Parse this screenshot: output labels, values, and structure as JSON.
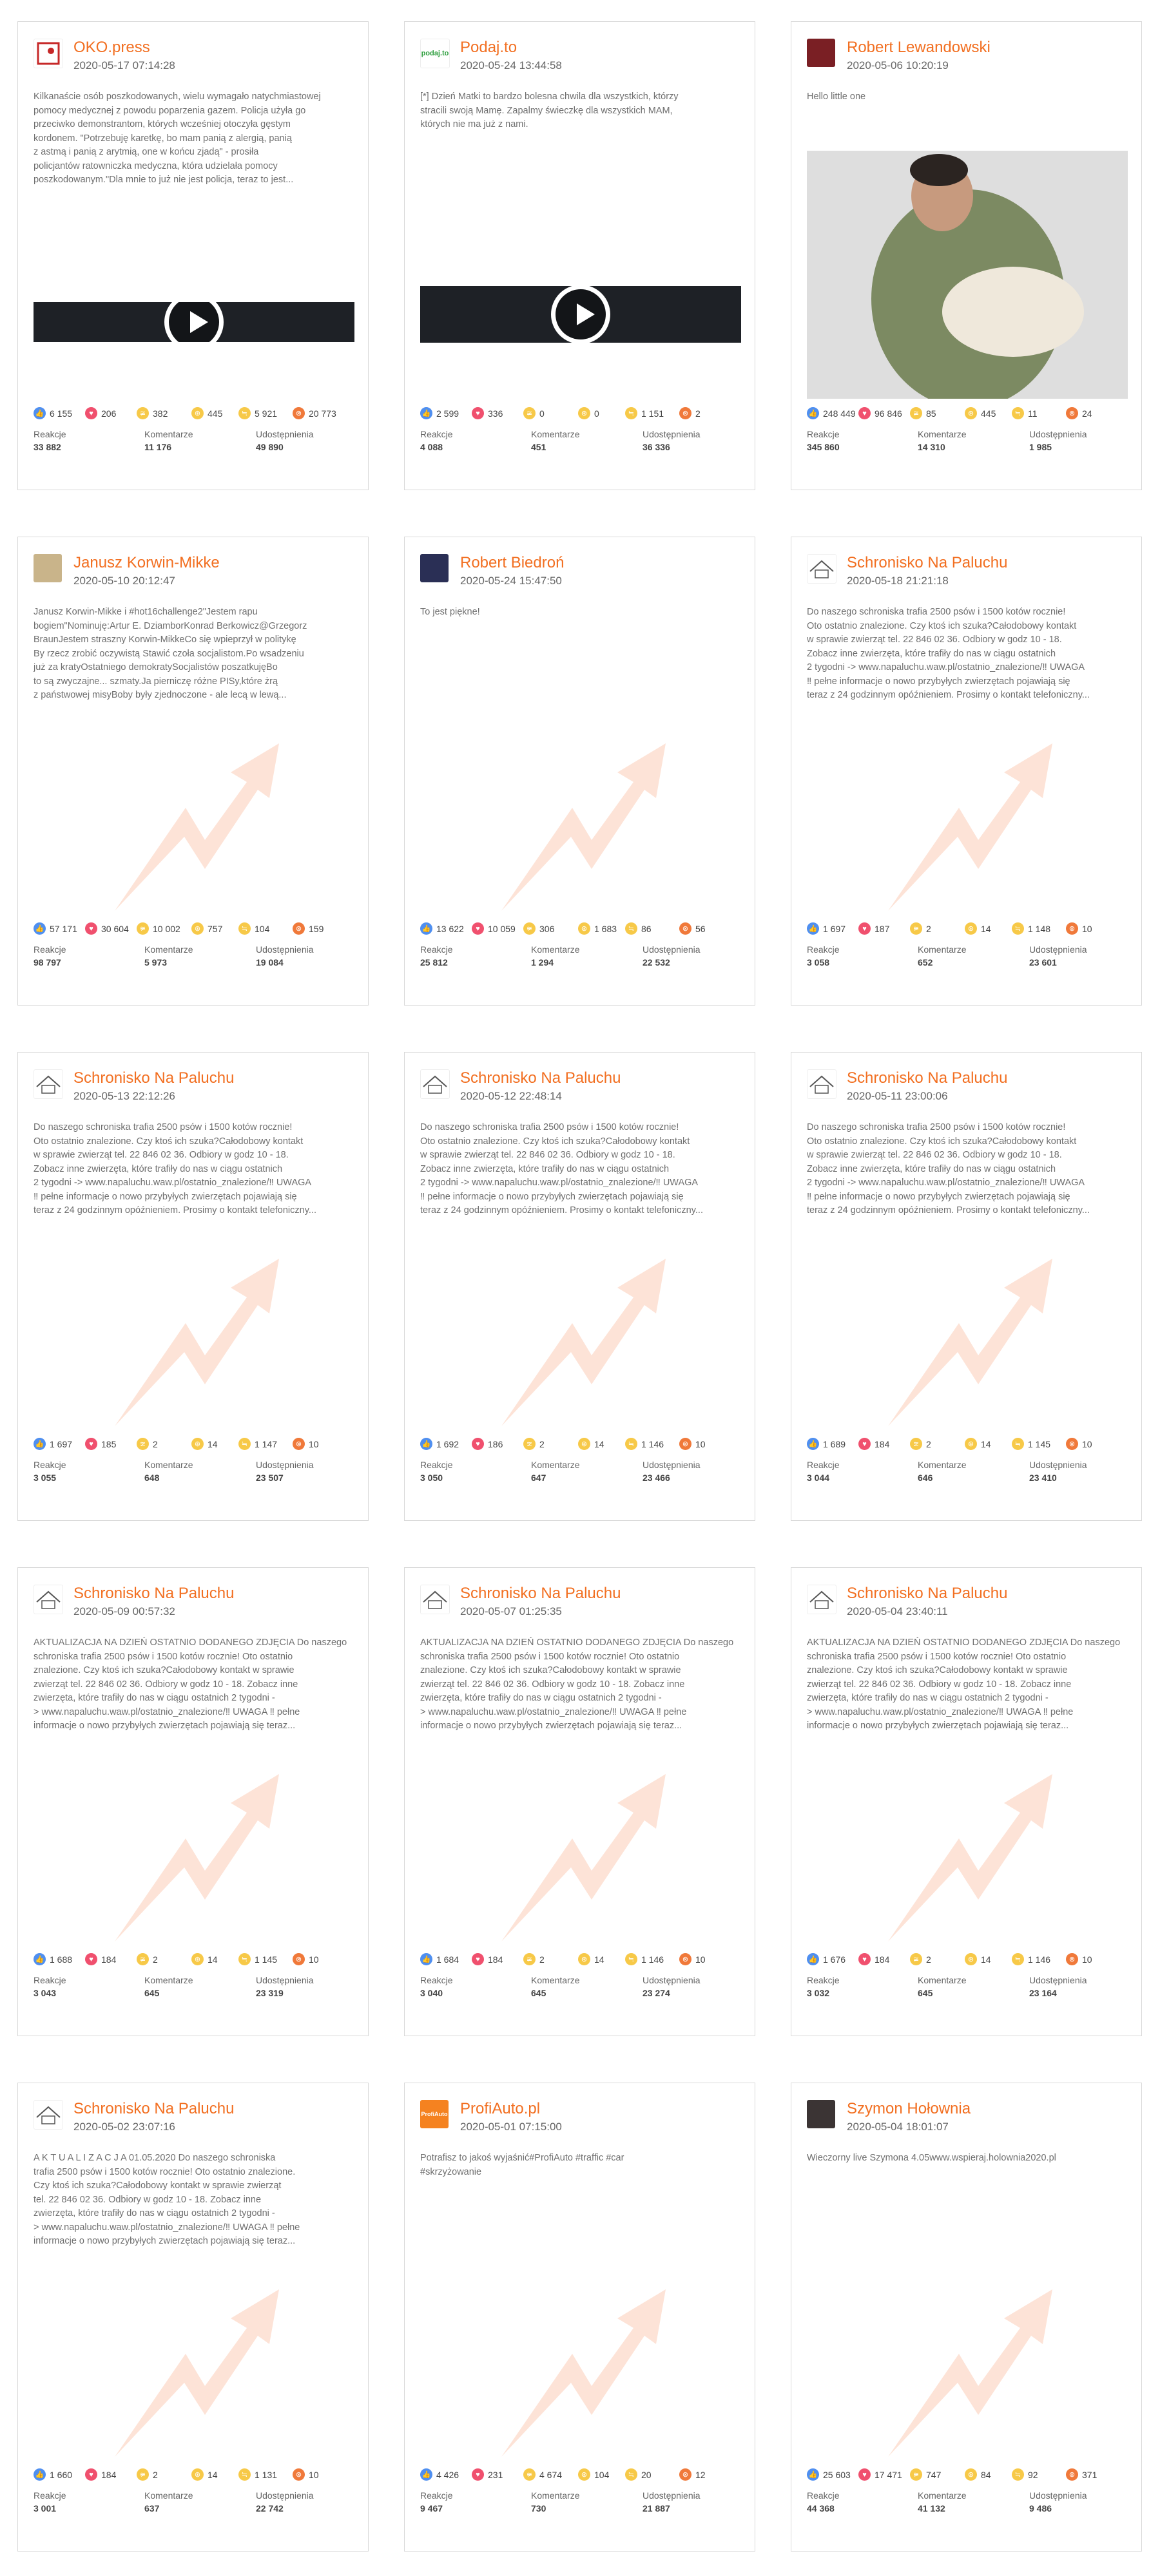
{
  "labels": {
    "reactions": "Reakcje",
    "comments": "Komentarze",
    "shares": "Udostępnienia"
  },
  "colors": {
    "author": "#f26f21",
    "like": "#4f8ff0",
    "love": "#f0506e",
    "haha": "#f7c948",
    "angry": "#f0793a",
    "watermark": "#fde3d7"
  },
  "cards": [
    {
      "author": "OKO.press",
      "date": "2020-05-17 07:14:28",
      "avatar_icon": "oko-press-logo-icon",
      "text": "Kilkanaście osób poszkodowanych, wielu wymagało natychmiastowej\npomocy medycznej z powodu poparzenia gazem. Policja użyła go\nprzeciwko demonstrantom, których wcześniej otoczyła gęstym\nkordonem. \"Potrzebuję karetkę, bo mam panią z alergią, panią\nz astmą i panią z arytmią, one w końcu zjadą\" - prosiła\npolicjantów ratowniczka medyczna, która udzielała pomocy\nposzkodowanym.\"Dla mnie to już nie jest policja, teraz to jest...",
      "media": "video",
      "stats": {
        "like": "6 155",
        "love": "206",
        "haha": "382",
        "wow": "445",
        "sad": "5 921",
        "angry": "20 773"
      },
      "reactions": "33 882",
      "comments": "11 176",
      "shares": "49 890"
    },
    {
      "author": "Podaj.to",
      "date": "2020-05-24 13:44:58",
      "avatar_icon": "podaj-to-logo-icon",
      "text": "[*] Dzień Matki to bardzo bolesna chwila dla wszystkich, którzy\nstracili swoją Mamę. Zapalmy świeczkę dla wszystkich MAM,\nktórych nie ma już z nami.",
      "media": "video",
      "stats": {
        "like": "2 599",
        "love": "336",
        "haha": "0",
        "wow": "0",
        "sad": "1 151",
        "angry": "2"
      },
      "reactions": "4 088",
      "comments": "451",
      "shares": "36 336"
    },
    {
      "author": "Robert Lewandowski",
      "date": "2020-05-06 10:20:19",
      "avatar_icon": "robert-lewandowski-avatar-icon",
      "text": "Hello little one",
      "media": "photo",
      "stats": {
        "like": "248 449",
        "love": "96 846",
        "haha": "85",
        "wow": "445",
        "sad": "11",
        "angry": "24"
      },
      "reactions": "345 860",
      "comments": "14 310",
      "shares": "1 985"
    },
    {
      "author": "Janusz Korwin-Mikke",
      "date": "2020-05-10 20:12:47",
      "avatar_icon": "janusz-korwin-mikke-avatar-icon",
      "text": "Janusz Korwin-Mikke i #hot16challenge2\"Jestem rapu\nbogiem\"Nominuję:Artur E. DziamborKonrad Berkowicz@Grzegorz\nBraunJestem straszny Korwin-MikkeCo się wpieprzył w politykę\nBy rzecz zrobić oczywistą Stawić czoła socjalistom.Po wsadzeniu\njuż za kratyOstatniego demokratySocjalistów poszatkujęBo\nto są zwyczajne... szmaty.Ja pierniczę różne PISy,które żrą\nz państwowej misyBoby były zjednoczone - ale lecą w lewą...",
      "media": "none",
      "stats": {
        "like": "57 171",
        "love": "30 604",
        "haha": "10 002",
        "wow": "757",
        "sad": "104",
        "angry": "159"
      },
      "reactions": "98 797",
      "comments": "5 973",
      "shares": "19 084"
    },
    {
      "author": "Robert Biedroń",
      "date": "2020-05-24 15:47:50",
      "avatar_icon": "robert-biedron-avatar-icon",
      "text": "To jest piękne!",
      "media": "none",
      "stats": {
        "like": "13 622",
        "love": "10 059",
        "haha": "306",
        "wow": "1 683",
        "sad": "86",
        "angry": "56"
      },
      "reactions": "25 812",
      "comments": "1 294",
      "shares": "22 532"
    },
    {
      "author": "Schronisko Na Paluchu",
      "date": "2020-05-18 21:21:18",
      "avatar_icon": "schronisko-logo-icon",
      "text": "Do naszego schroniska trafia 2500 psów i 1500 kotów rocznie!\nOto ostatnio znalezione. Czy ktoś ich szuka?Całodobowy kontakt\nw sprawie zwierząt tel. 22 846 02 36. Odbiory w godz 10 - 18.\nZobacz inne zwierzęta, które trafiły do nas w ciągu ostatnich\n2 tygodni -> www.napaluchu.waw.pl/ostatnio_znalezione/‼ UWAGA\n‼ pełne informacje o nowo przybyłych zwierzętach pojawiają się\nteraz z 24 godzinnym opóźnieniem. Prosimy o kontakt telefoniczny...",
      "media": "none",
      "stats": {
        "like": "1 697",
        "love": "187",
        "haha": "2",
        "wow": "14",
        "sad": "1 148",
        "angry": "10"
      },
      "reactions": "3 058",
      "comments": "652",
      "shares": "23 601"
    },
    {
      "author": "Schronisko Na Paluchu",
      "date": "2020-05-13 22:12:26",
      "avatar_icon": "schronisko-logo-icon",
      "text": "Do naszego schroniska trafia 2500 psów i 1500 kotów rocznie!\nOto ostatnio znalezione. Czy ktoś ich szuka?Całodobowy kontakt\nw sprawie zwierząt tel. 22 846 02 36. Odbiory w godz 10 - 18.\nZobacz inne zwierzęta, które trafiły do nas w ciągu ostatnich\n2 tygodni -> www.napaluchu.waw.pl/ostatnio_znalezione/‼ UWAGA\n‼ pełne informacje o nowo przybyłych zwierzętach pojawiają się\nteraz z 24 godzinnym opóźnieniem. Prosimy o kontakt telefoniczny...",
      "media": "none",
      "stats": {
        "like": "1 697",
        "love": "185",
        "haha": "2",
        "wow": "14",
        "sad": "1 147",
        "angry": "10"
      },
      "reactions": "3 055",
      "comments": "648",
      "shares": "23 507"
    },
    {
      "author": "Schronisko Na Paluchu",
      "date": "2020-05-12 22:48:14",
      "avatar_icon": "schronisko-logo-icon",
      "text": "Do naszego schroniska trafia 2500 psów i 1500 kotów rocznie!\nOto ostatnio znalezione. Czy ktoś ich szuka?Całodobowy kontakt\nw sprawie zwierząt tel. 22 846 02 36. Odbiory w godz 10 - 18.\nZobacz inne zwierzęta, które trafiły do nas w ciągu ostatnich\n2 tygodni -> www.napaluchu.waw.pl/ostatnio_znalezione/‼ UWAGA\n‼ pełne informacje o nowo przybyłych zwierzętach pojawiają się\nteraz z 24 godzinnym opóźnieniem. Prosimy o kontakt telefoniczny...",
      "media": "none",
      "stats": {
        "like": "1 692",
        "love": "186",
        "haha": "2",
        "wow": "14",
        "sad": "1 146",
        "angry": "10"
      },
      "reactions": "3 050",
      "comments": "647",
      "shares": "23 466"
    },
    {
      "author": "Schronisko Na Paluchu",
      "date": "2020-05-11 23:00:06",
      "avatar_icon": "schronisko-logo-icon",
      "text": "Do naszego schroniska trafia 2500 psów i 1500 kotów rocznie!\nOto ostatnio znalezione. Czy ktoś ich szuka?Całodobowy kontakt\nw sprawie zwierząt tel. 22 846 02 36. Odbiory w godz 10 - 18.\nZobacz inne zwierzęta, które trafiły do nas w ciągu ostatnich\n2 tygodni -> www.napaluchu.waw.pl/ostatnio_znalezione/‼ UWAGA\n‼ pełne informacje o nowo przybyłych zwierzętach pojawiają się\nteraz z 24 godzinnym opóźnieniem. Prosimy o kontakt telefoniczny...",
      "media": "none",
      "stats": {
        "like": "1 689",
        "love": "184",
        "haha": "2",
        "wow": "14",
        "sad": "1 145",
        "angry": "10"
      },
      "reactions": "3 044",
      "comments": "646",
      "shares": "23 410"
    },
    {
      "author": "Schronisko Na Paluchu",
      "date": "2020-05-09 00:57:32",
      "avatar_icon": "schronisko-logo-icon",
      "text": "AKTUALIZACJA NA DZIEŃ OSTATNIO DODANEGO ZDJĘCIA Do naszego\nschroniska trafia 2500 psów i 1500 kotów rocznie! Oto ostatnio\nznalezione. Czy ktoś ich szuka?Całodobowy kontakt w sprawie\nzwierząt tel. 22 846 02 36. Odbiory w godz 10 - 18. Zobacz inne\nzwierzęta, które trafiły do nas w ciągu ostatnich 2 tygodni -\n> www.napaluchu.waw.pl/ostatnio_znalezione/‼ UWAGA ‼ pełne\ninformacje o nowo przybyłych zwierzętach pojawiają się teraz...",
      "media": "none",
      "stats": {
        "like": "1 688",
        "love": "184",
        "haha": "2",
        "wow": "14",
        "sad": "1 145",
        "angry": "10"
      },
      "reactions": "3 043",
      "comments": "645",
      "shares": "23 319"
    },
    {
      "author": "Schronisko Na Paluchu",
      "date": "2020-05-07 01:25:35",
      "avatar_icon": "schronisko-logo-icon",
      "text": "AKTUALIZACJA NA DZIEŃ OSTATNIO DODANEGO ZDJĘCIA Do naszego\nschroniska trafia 2500 psów i 1500 kotów rocznie! Oto ostatnio\nznalezione. Czy ktoś ich szuka?Całodobowy kontakt w sprawie\nzwierząt tel. 22 846 02 36. Odbiory w godz 10 - 18. Zobacz inne\nzwierzęta, które trafiły do nas w ciągu ostatnich 2 tygodni -\n> www.napaluchu.waw.pl/ostatnio_znalezione/‼ UWAGA ‼ pełne\ninformacje o nowo przybyłych zwierzętach pojawiają się teraz...",
      "media": "none",
      "stats": {
        "like": "1 684",
        "love": "184",
        "haha": "2",
        "wow": "14",
        "sad": "1 146",
        "angry": "10"
      },
      "reactions": "3 040",
      "comments": "645",
      "shares": "23 274"
    },
    {
      "author": "Schronisko Na Paluchu",
      "date": "2020-05-04 23:40:11",
      "avatar_icon": "schronisko-logo-icon",
      "text": "AKTUALIZACJA NA DZIEŃ OSTATNIO DODANEGO ZDJĘCIA Do naszego\nschroniska trafia 2500 psów i 1500 kotów rocznie! Oto ostatnio\nznalezione. Czy ktoś ich szuka?Całodobowy kontakt w sprawie\nzwierząt tel. 22 846 02 36. Odbiory w godz 10 - 18. Zobacz inne\nzwierzęta, które trafiły do nas w ciągu ostatnich 2 tygodni -\n> www.napaluchu.waw.pl/ostatnio_znalezione/‼ UWAGA ‼ pełne\ninformacje o nowo przybyłych zwierzętach pojawiają się teraz...",
      "media": "none",
      "stats": {
        "like": "1 676",
        "love": "184",
        "haha": "2",
        "wow": "14",
        "sad": "1 146",
        "angry": "10"
      },
      "reactions": "3 032",
      "comments": "645",
      "shares": "23 164"
    },
    {
      "author": "Schronisko Na Paluchu",
      "date": "2020-05-02 23:07:16",
      "avatar_icon": "schronisko-logo-icon",
      "text": "A K T U A L I Z A C J A 01.05.2020 Do naszego schroniska\ntrafia 2500 psów i 1500 kotów rocznie! Oto ostatnio znalezione.\nCzy ktoś ich szuka?Całodobowy kontakt w sprawie zwierząt\ntel. 22 846 02 36. Odbiory w godz 10 - 18. Zobacz inne\nzwierzęta, które trafiły do nas w ciągu ostatnich 2 tygodni -\n> www.napaluchu.waw.pl/ostatnio_znalezione/‼ UWAGA ‼ pełne\ninformacje o nowo przybyłych zwierzętach pojawiają się teraz...",
      "media": "none",
      "stats": {
        "like": "1 660",
        "love": "184",
        "haha": "2",
        "wow": "14",
        "sad": "1 131",
        "angry": "10"
      },
      "reactions": "3 001",
      "comments": "637",
      "shares": "22 742"
    },
    {
      "author": "ProfiAuto.pl",
      "date": "2020-05-01 07:15:00",
      "avatar_icon": "profiauto-logo-icon",
      "text": "Potrafisz to jakoś wyjaśnić#ProfiAuto #traffic #car\n#skrzyżowanie",
      "media": "none",
      "stats": {
        "like": "4 426",
        "love": "231",
        "haha": "4 674",
        "wow": "104",
        "sad": "20",
        "angry": "12"
      },
      "reactions": "9 467",
      "comments": "730",
      "shares": "21 887"
    },
    {
      "author": "Szymon Hołownia",
      "date": "2020-05-04 18:01:07",
      "avatar_icon": "szymon-holownia-avatar-icon",
      "text": "Wieczorny live Szymona 4.05www.wspieraj.holownia2020.pl",
      "media": "none",
      "stats": {
        "like": "25 603",
        "love": "17 471",
        "haha": "747",
        "wow": "84",
        "sad": "92",
        "angry": "371"
      },
      "reactions": "44 368",
      "comments": "41 132",
      "shares": "9 486"
    }
  ]
}
